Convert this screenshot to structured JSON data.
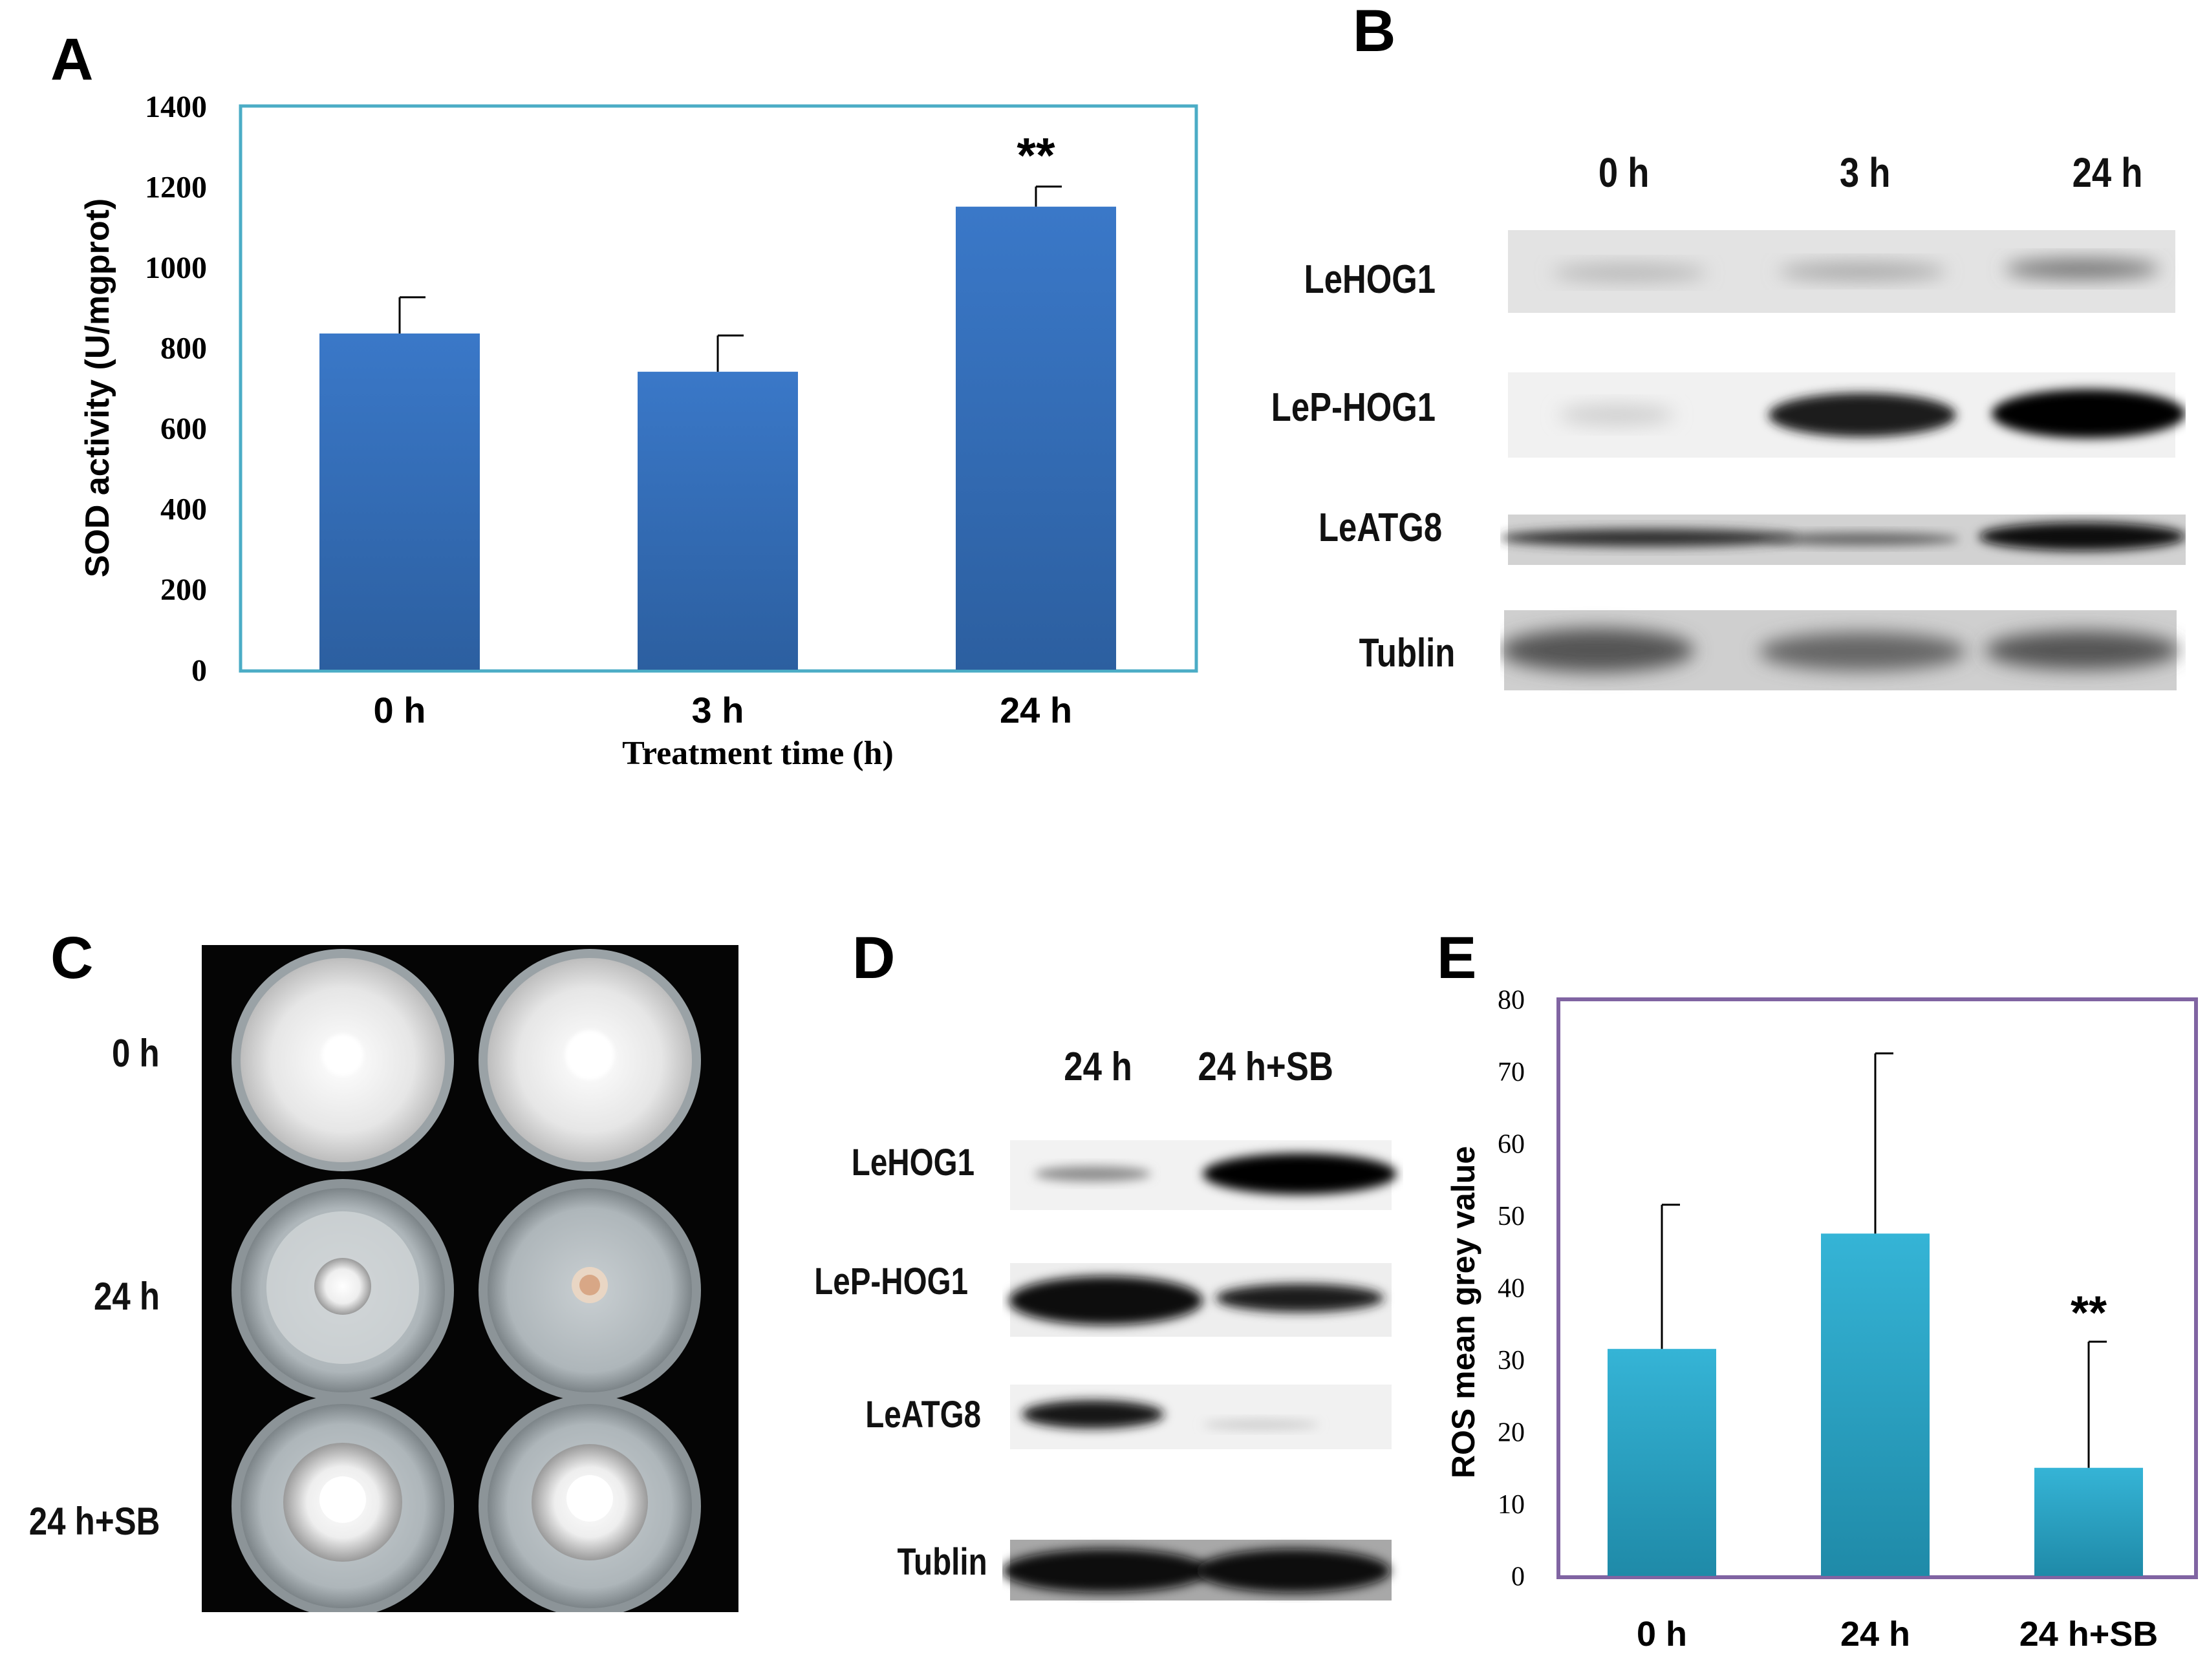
{
  "panels": {
    "A": "A",
    "B": "B",
    "C": "C",
    "D": "D",
    "E": "E"
  },
  "chart_data": [
    {
      "panel": "A",
      "type": "bar",
      "categories": [
        "0 h",
        "3 h",
        "24 h"
      ],
      "values": [
        835,
        740,
        1150
      ],
      "errors": [
        90,
        90,
        50
      ],
      "significance": [
        "",
        "",
        "**"
      ],
      "xlabel": "Treatment time (h)",
      "ylabel": "SOD activity (U/mgprot)",
      "ylim": [
        0,
        1400
      ],
      "yticks": [
        0,
        200,
        400,
        600,
        800,
        1000,
        1200,
        1400
      ],
      "grid": false,
      "bar_color": "#3a78c8",
      "frame_color": "#4bacc6"
    },
    {
      "panel": "E",
      "type": "bar",
      "categories": [
        "0 h",
        "24 h",
        "24 h+SB"
      ],
      "values": [
        31.5,
        47.5,
        15
      ],
      "errors": [
        20,
        25,
        17.5
      ],
      "significance": [
        "",
        "",
        "**"
      ],
      "xlabel": "",
      "ylabel": "ROS mean grey value",
      "ylim": [
        0,
        80
      ],
      "yticks": [
        0,
        10,
        20,
        30,
        40,
        50,
        60,
        70,
        80
      ],
      "grid": false,
      "bar_color": "#35b4d6",
      "frame_color": "#8064a2"
    }
  ],
  "blotB": {
    "lanes": [
      "0 h",
      "3 h",
      "24 h"
    ],
    "rows": [
      "LeHOG1",
      "LeP-HOG1",
      "LeATG8",
      "Tublin"
    ]
  },
  "blotD": {
    "lanes": [
      "24 h",
      "24 h+SB"
    ],
    "rows": [
      "LeHOG1",
      "LeP-HOG1",
      "LeATG8",
      "Tublin"
    ]
  },
  "dishesC": {
    "rows": [
      "0 h",
      "24 h",
      "24 h+SB"
    ]
  }
}
